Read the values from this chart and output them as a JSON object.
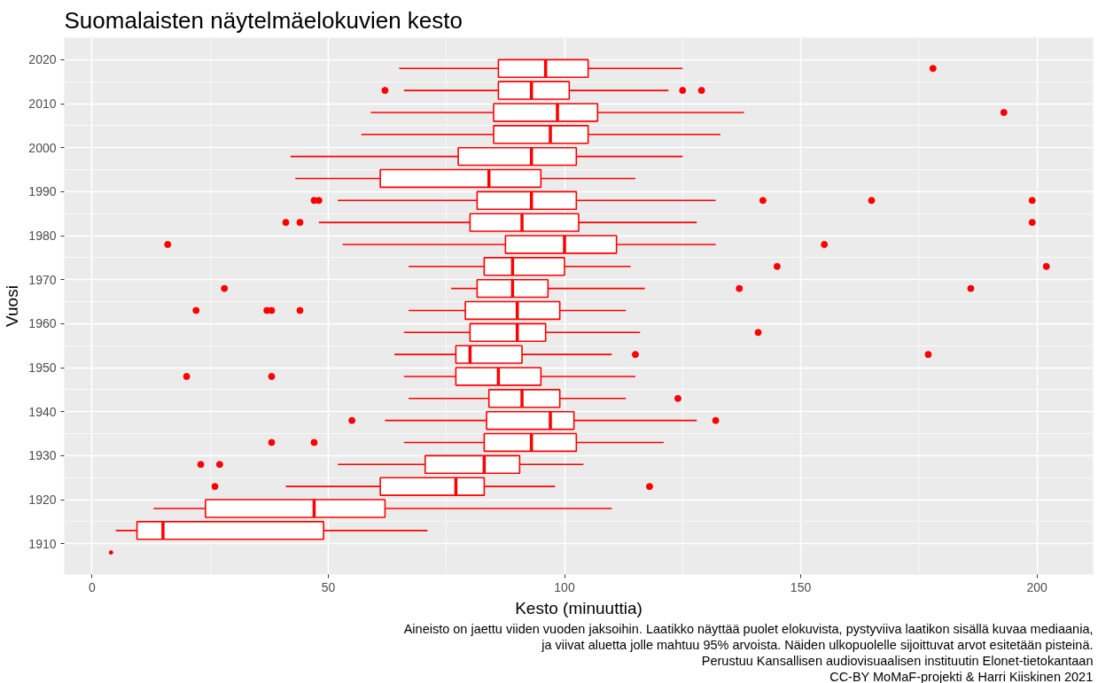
{
  "chart_data": {
    "type": "box",
    "orientation": "horizontal",
    "title": "Suomalaisten näytelmäelokuvien kesto",
    "xlabel": "Kesto (minuuttia)",
    "ylabel": "Vuosi",
    "x": [
      2018,
      2013,
      2008,
      2003,
      1998,
      1993,
      1988,
      1983,
      1978,
      1973,
      1968,
      1963,
      1958,
      1953,
      1948,
      1943,
      1938,
      1933,
      1928,
      1923,
      1918,
      1913
    ],
    "color": "#ff0000",
    "boxes": [
      {
        "low": 65,
        "q1": 86,
        "median": 96,
        "q3": 105,
        "high": 125,
        "outliers": [
          178
        ]
      },
      {
        "low": 66,
        "q1": 86,
        "median": 93,
        "q3": 101,
        "high": 122,
        "outliers": [
          62,
          125,
          129
        ]
      },
      {
        "low": 59,
        "q1": 85,
        "median": 98.5,
        "q3": 107,
        "high": 138,
        "outliers": [
          193
        ]
      },
      {
        "low": 57,
        "q1": 85,
        "median": 97,
        "q3": 105,
        "high": 133
      },
      {
        "low": 42,
        "q1": 77.5,
        "median": 93,
        "q3": 102.5,
        "high": 125
      },
      {
        "low": 43,
        "q1": 61,
        "median": 84,
        "q3": 95,
        "high": 115
      },
      {
        "low": 52,
        "q1": 81.5,
        "median": 93,
        "q3": 102.5,
        "high": 132,
        "outliers": [
          47,
          48,
          142,
          165,
          199
        ]
      },
      {
        "low": 48,
        "q1": 80,
        "median": 91,
        "q3": 103,
        "high": 128,
        "outliers": [
          41,
          44,
          199
        ]
      },
      {
        "low": 53,
        "q1": 87.5,
        "median": 100,
        "q3": 111,
        "high": 132,
        "outliers": [
          16,
          155
        ]
      },
      {
        "low": 67,
        "q1": 83,
        "median": 89,
        "q3": 100,
        "high": 114,
        "outliers": [
          145,
          202
        ]
      },
      {
        "low": 76,
        "q1": 81.5,
        "median": 89,
        "q3": 96.5,
        "high": 117,
        "outliers": [
          28,
          137,
          186
        ]
      },
      {
        "low": 67,
        "q1": 79,
        "median": 90,
        "q3": 99,
        "high": 113,
        "outliers": [
          22,
          37,
          38,
          44
        ]
      },
      {
        "low": 66,
        "q1": 80,
        "median": 90,
        "q3": 96,
        "high": 116,
        "outliers": [
          141
        ]
      },
      {
        "low": 64,
        "q1": 77,
        "median": 80,
        "q3": 91,
        "high": 110,
        "outliers": [
          115,
          177
        ]
      },
      {
        "low": 66,
        "q1": 77,
        "median": 86,
        "q3": 95,
        "high": 115,
        "outliers": [
          20,
          38
        ]
      },
      {
        "low": 67,
        "q1": 84,
        "median": 91,
        "q3": 99,
        "high": 113,
        "outliers": [
          124
        ]
      },
      {
        "low": 62,
        "q1": 83.5,
        "median": 97,
        "q3": 102,
        "high": 128,
        "outliers": [
          55,
          132
        ]
      },
      {
        "low": 66,
        "q1": 83,
        "median": 93,
        "q3": 102.5,
        "high": 121,
        "outliers": [
          38,
          47
        ]
      },
      {
        "low": 52,
        "q1": 70.5,
        "median": 83,
        "q3": 90.5,
        "high": 104,
        "outliers": [
          23,
          27
        ]
      },
      {
        "low": 41,
        "q1": 61,
        "median": 77,
        "q3": 83,
        "high": 98,
        "outliers": [
          26,
          118
        ]
      },
      {
        "low": 13,
        "q1": 24,
        "median": 47,
        "q3": 62,
        "high": 110
      },
      {
        "low": 5,
        "q1": 9.5,
        "median": 15,
        "q3": 49,
        "high": 71
      }
    ],
    "series": [
      {
        "type": "scatter",
        "x": [
          1908
        ],
        "values": [
          4
        ]
      }
    ],
    "xlim": [
      -5.9,
      211.9
    ],
    "xticks": [
      0,
      50,
      100,
      150,
      200
    ],
    "ylim": [
      1903,
      2025
    ],
    "yticks": [
      1910,
      1920,
      1930,
      1940,
      1950,
      1960,
      1970,
      1980,
      1990,
      2000,
      2010,
      2020
    ],
    "grid": true,
    "annotations": [
      "Aineisto on jaettu viiden vuoden jaksoihin. Laatikko näyttää puolet elokuvista, pystyviiva laatikon sisällä kuvaa mediaania,",
      "ja viivat aluetta jolle mahtuu 95% arvoista. Näiden ulkopuolelle sijoittuvat arvot esitetään pisteinä.",
      "Perustuu Kansallisen audiovisuaalisen instituutin Elonet-tietokantaan",
      "CC-BY MoMaF-projekti & Harri Kiiskinen 2021"
    ]
  }
}
